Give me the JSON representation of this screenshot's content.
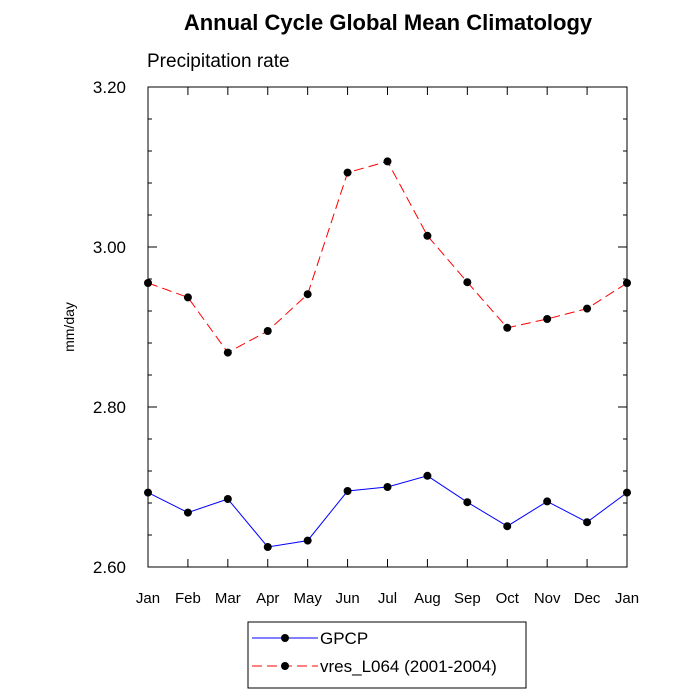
{
  "chart_data": {
    "type": "line",
    "title": "Annual Cycle Global Mean Climatology",
    "subtitle": "Precipitation rate",
    "xlabel": "",
    "ylabel": "mm/day",
    "categories": [
      "Jan",
      "Feb",
      "Mar",
      "Apr",
      "May",
      "Jun",
      "Jul",
      "Aug",
      "Sep",
      "Oct",
      "Nov",
      "Dec",
      "Jan"
    ],
    "ylim": [
      2.6,
      3.2
    ],
    "yticks": [
      "2.60",
      "2.80",
      "3.00",
      "3.20"
    ],
    "series": [
      {
        "name": "GPCP",
        "color": "#0000ff",
        "dash": "solid",
        "values": [
          2.693,
          2.668,
          2.685,
          2.625,
          2.633,
          2.695,
          2.7,
          2.714,
          2.681,
          2.651,
          2.682,
          2.656,
          2.693
        ]
      },
      {
        "name": "vres_L064 (2001-2004)",
        "color": "#ff0000",
        "dash": "dashed",
        "values": [
          2.955,
          2.937,
          2.868,
          2.895,
          2.941,
          3.093,
          3.107,
          3.014,
          2.956,
          2.899,
          2.91,
          2.923,
          2.955
        ]
      }
    ],
    "legend": "bottom-center"
  }
}
